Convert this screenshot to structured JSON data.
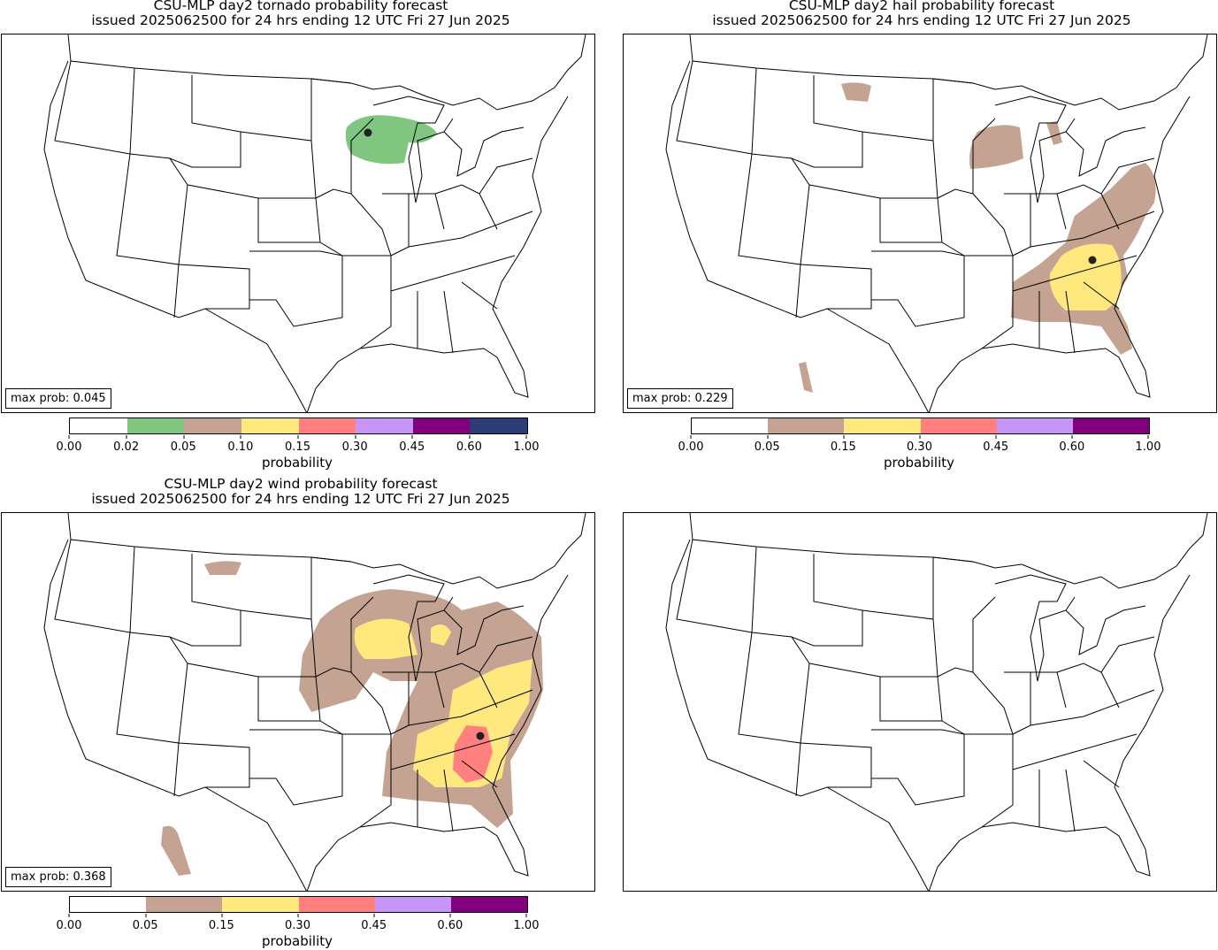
{
  "panels": [
    {
      "title1": "CSU-MLP day2 tornado probability forecast",
      "title2": "issued 2025062500 for 24 hrs ending 12 UTC Fri 27 Jun 2025",
      "max_prob": "max prob: 0.045",
      "colorbar": {
        "label": "probability",
        "ticks": [
          "0.00",
          "0.02",
          "0.05",
          "0.10",
          "0.15",
          "0.30",
          "0.45",
          "0.60",
          "1.00"
        ],
        "colors": [
          "#ffffff",
          "#80c580",
          "#c4a393",
          "#ffe97f",
          "#ff807f",
          "#c795f5",
          "#800080",
          "#2c3e76"
        ]
      }
    },
    {
      "title1": "CSU-MLP day2 hail probability forecast",
      "title2": "issued 2025062500 for 24 hrs ending 12 UTC Fri 27 Jun 2025",
      "max_prob": "max prob: 0.229",
      "colorbar": {
        "label": "probability",
        "ticks": [
          "0.00",
          "0.05",
          "0.15",
          "0.30",
          "0.45",
          "0.60",
          "1.00"
        ],
        "colors": [
          "#ffffff",
          "#c4a393",
          "#ffe97f",
          "#ff807f",
          "#c795f5",
          "#800080"
        ]
      }
    },
    {
      "title1": "CSU-MLP day2 wind probability forecast",
      "title2": "issued 2025062500 for 24 hrs ending 12 UTC Fri 27 Jun 2025",
      "max_prob": "max prob: 0.368",
      "colorbar": {
        "label": "probability",
        "ticks": [
          "0.00",
          "0.05",
          "0.15",
          "0.30",
          "0.45",
          "0.60",
          "1.00"
        ],
        "colors": [
          "#ffffff",
          "#c4a393",
          "#ffe97f",
          "#ff807f",
          "#c795f5",
          "#800080"
        ]
      }
    }
  ]
}
